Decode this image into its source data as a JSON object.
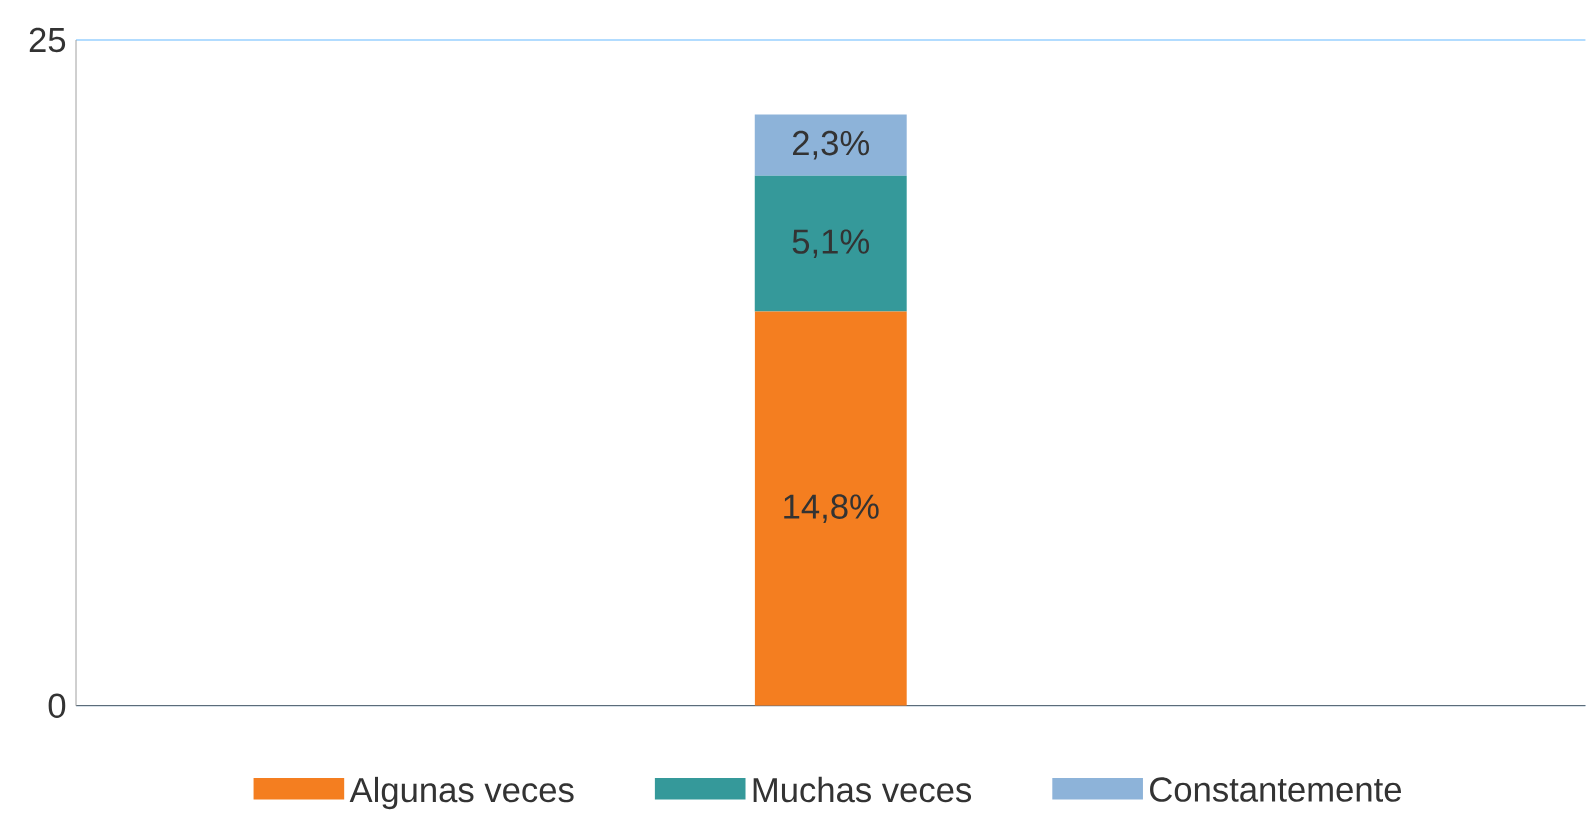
{
  "chart_data": {
    "type": "bar",
    "stacked": true,
    "categories": [
      null
    ],
    "series": [
      {
        "name": "Algunas veces",
        "color": "#f47e20",
        "values": [
          14.8
        ],
        "value_labels": [
          "14,8%"
        ]
      },
      {
        "name": "Muchas veces",
        "color": "#35999a",
        "values": [
          5.1
        ],
        "value_labels": [
          "5,1%"
        ]
      },
      {
        "name": "Constantemente",
        "color": "#8db3d9",
        "values": [
          2.3
        ],
        "value_labels": [
          "2,3%"
        ]
      }
    ],
    "ylim": [
      0,
      25
    ],
    "yticks": [
      0,
      25
    ],
    "grid": "y",
    "legend": "bottom"
  }
}
